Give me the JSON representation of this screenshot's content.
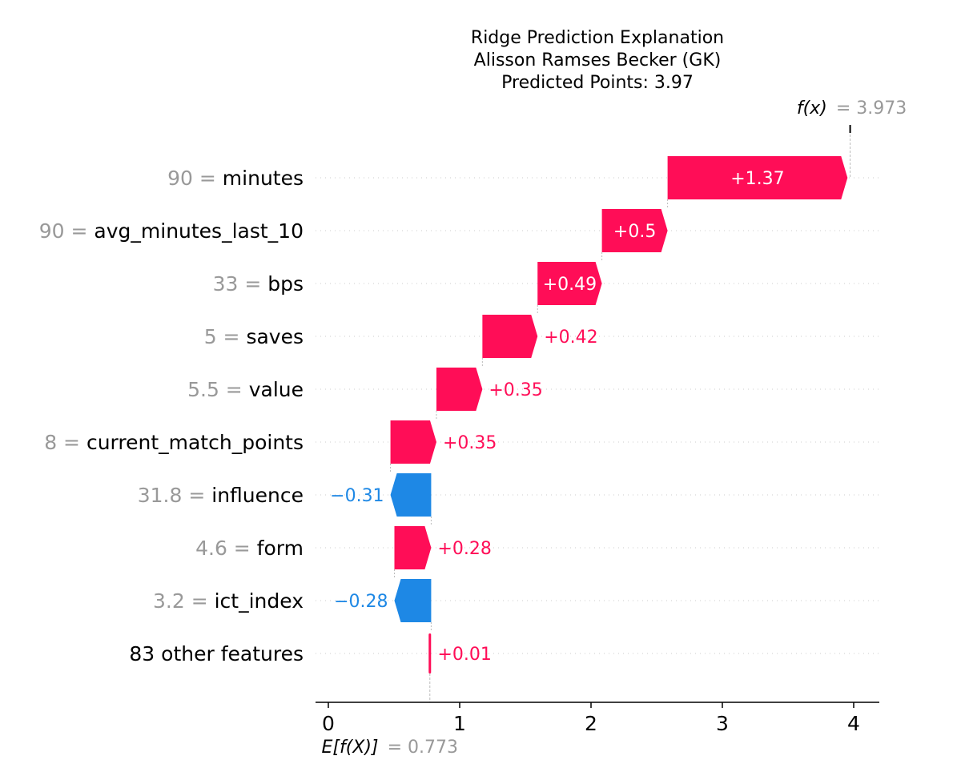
{
  "chart_data": {
    "type": "waterfall",
    "title_lines": [
      "Ridge Prediction Explanation",
      "Alisson Ramses Becker (GK)",
      "Predicted Points: 3.97"
    ],
    "base_value": 0.773,
    "base_label_var": "E[f(X)]",
    "base_label_value": "= 0.773",
    "output_value": 3.973,
    "output_label_var": "f(x)",
    "output_label_value": "= 3.973",
    "xlim": [
      -0.1,
      4.2
    ],
    "xticks": [
      0,
      1,
      2,
      3,
      4
    ],
    "xtick_labels": [
      "0",
      "1",
      "2",
      "3",
      "4"
    ],
    "features": [
      {
        "value_text": "90 =",
        "name": "minutes",
        "contribution": 1.37,
        "label": "+1.37"
      },
      {
        "value_text": "90 =",
        "name": "avg_minutes_last_10",
        "contribution": 0.5,
        "label": "+0.5"
      },
      {
        "value_text": "33 =",
        "name": "bps",
        "contribution": 0.49,
        "label": "+0.49"
      },
      {
        "value_text": "5 =",
        "name": "saves",
        "contribution": 0.42,
        "label": "+0.42"
      },
      {
        "value_text": "5.5 =",
        "name": "value",
        "contribution": 0.35,
        "label": "+0.35"
      },
      {
        "value_text": "8 =",
        "name": "current_match_points",
        "contribution": 0.35,
        "label": "+0.35"
      },
      {
        "value_text": "31.8 =",
        "name": "influence",
        "contribution": -0.31,
        "label": "−0.31"
      },
      {
        "value_text": "4.6 =",
        "name": "form",
        "contribution": 0.28,
        "label": "+0.28"
      },
      {
        "value_text": "3.2 =",
        "name": "ict_index",
        "contribution": -0.28,
        "label": "−0.28"
      },
      {
        "value_text": "",
        "name": "83 other features",
        "contribution": 0.01,
        "label": "+0.01"
      }
    ],
    "colors": {
      "positive": "#ff0d57",
      "negative": "#1e88e5",
      "feature_value": "#999999",
      "text": "#000000"
    }
  }
}
